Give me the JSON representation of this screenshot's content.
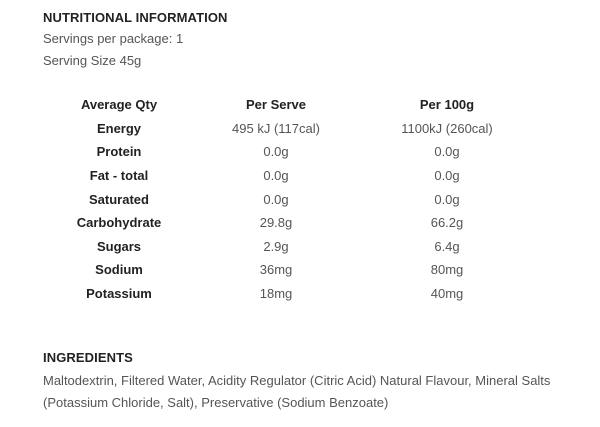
{
  "nutrition": {
    "title": "NUTRITIONAL INFORMATION",
    "servings_per_package": "Servings per package: 1",
    "serving_size": "Serving Size 45g",
    "headers": [
      "Average Qty",
      "Per Serve",
      "Per 100g"
    ],
    "rows": [
      {
        "label": "Energy",
        "per_serve": "495 kJ (117cal)",
        "per_100g": "1100kJ (260cal)"
      },
      {
        "label": "Protein",
        "per_serve": "0.0g",
        "per_100g": "0.0g"
      },
      {
        "label": "Fat - total",
        "per_serve": "0.0g",
        "per_100g": "0.0g"
      },
      {
        "label": "Saturated",
        "per_serve": "0.0g",
        "per_100g": "0.0g"
      },
      {
        "label": "Carbohydrate",
        "per_serve": "29.8g",
        "per_100g": "66.2g"
      },
      {
        "label": "Sugars",
        "per_serve": "2.9g",
        "per_100g": "6.4g"
      },
      {
        "label": "Sodium",
        "per_serve": "36mg",
        "per_100g": "80mg"
      },
      {
        "label": "Potassium",
        "per_serve": "18mg",
        "per_100g": "40mg"
      }
    ]
  },
  "ingredients": {
    "title": "INGREDIENTS",
    "text": "Maltodextrin, Filtered Water, Acidity Regulator (Citric Acid) Natural Flavour, Mineral Salts (Potassium Chloride, Salt), Preservative (Sodium Benzoate)"
  }
}
